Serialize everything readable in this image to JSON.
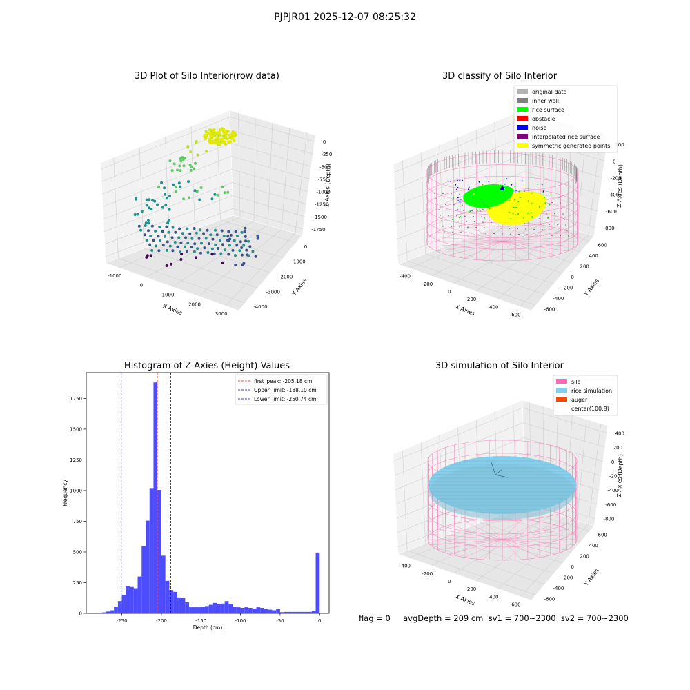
{
  "figure": {
    "title": "PJPJR01 2025-12-07 08:25:32",
    "status_text": "flag = 0     avgDepth = 209 cm  sv1 = 700~2300  sv2 = 700~2300"
  },
  "colors": {
    "histogram": "#4d4dff",
    "peak_line": "#ff0000",
    "limit_line": "#0000cc",
    "silo": "#ff69b4",
    "rice_simulation": "#87ceeb",
    "auger": "#ff4500"
  },
  "chart_data": [
    {
      "id": "raw",
      "type": "scatter",
      "projection": "3d",
      "title": "3D Plot of Silo Interior(row data)",
      "xlabel": "X Axies",
      "ylabel": "Y Axies",
      "zlabel": "Z Axies (Depth)",
      "x_ticks": [
        "-1000",
        "0",
        "1000",
        "2000",
        "3000"
      ],
      "y_ticks": [
        "-4000",
        "-3000",
        "-2000",
        "-1000",
        "0"
      ],
      "z_ticks": [
        "0",
        "-250",
        "-500",
        "-750",
        "-1000",
        "-1250",
        "-1500",
        "-1750"
      ],
      "colormap": "viridis"
    },
    {
      "id": "classify",
      "type": "scatter",
      "projection": "3d",
      "title": "3D classify of Silo Interior",
      "xlabel": "X Axies",
      "ylabel": "Y Axies",
      "zlabel": "Z Axies (Depth)",
      "x_ticks": [
        "-400",
        "-200",
        "0",
        "200",
        "400",
        "600"
      ],
      "y_ticks": [
        "-600",
        "-400",
        "-200",
        "0",
        "200",
        "400",
        "600"
      ],
      "z_ticks": [
        "200",
        "0",
        "-200",
        "-400",
        "-600",
        "-800"
      ],
      "legend_position": "top-right",
      "legend": [
        {
          "label": "original data",
          "color": "#b3b3b3"
        },
        {
          "label": "inner wall",
          "color": "#808080"
        },
        {
          "label": "rice surface",
          "color": "#00ff00"
        },
        {
          "label": "obstacle",
          "color": "#ff0000"
        },
        {
          "label": "noise",
          "color": "#0000ff"
        },
        {
          "label": "interpolated rice surface",
          "color": "#800080"
        },
        {
          "label": "symmetric generated points",
          "color": "#ffff00"
        }
      ]
    },
    {
      "id": "hist",
      "type": "bar",
      "title": "Histogram of Z-Axies (Height) Values",
      "xlabel": "Depth (cm)",
      "ylabel": "Frequency",
      "xlim": [
        -295,
        12
      ],
      "ylim": [
        0,
        1960
      ],
      "x_ticks": [
        -250,
        -200,
        -150,
        -100,
        -50,
        0
      ],
      "y_ticks": [
        0,
        250,
        500,
        750,
        1000,
        1250,
        1500,
        1750
      ],
      "bin_width": 5,
      "bin_starts": [
        -280,
        -275,
        -270,
        -265,
        -260,
        -255,
        -250,
        -245,
        -240,
        -235,
        -230,
        -225,
        -220,
        -215,
        -210,
        -205,
        -200,
        -195,
        -190,
        -185,
        -180,
        -175,
        -170,
        -165,
        -160,
        -155,
        -150,
        -145,
        -140,
        -135,
        -130,
        -125,
        -120,
        -115,
        -110,
        -105,
        -100,
        -95,
        -90,
        -85,
        -80,
        -75,
        -70,
        -65,
        -60,
        -55,
        -50,
        -45,
        -40,
        -35,
        -30,
        -25,
        -20,
        -15,
        -10,
        -5
      ],
      "values": [
        5,
        8,
        15,
        25,
        55,
        100,
        150,
        220,
        215,
        205,
        300,
        545,
        755,
        1020,
        1880,
        1005,
        470,
        265,
        190,
        175,
        130,
        125,
        90,
        50,
        50,
        50,
        55,
        60,
        70,
        85,
        75,
        80,
        100,
        75,
        55,
        50,
        45,
        50,
        45,
        40,
        50,
        45,
        35,
        30,
        25,
        35,
        10,
        12,
        12,
        12,
        12,
        12,
        12,
        12,
        20,
        495
      ],
      "legend_position": "top-right",
      "reference_lines": [
        {
          "label": "first_peak: -205.18 cm",
          "x": -205.18,
          "color": "#ff0000"
        },
        {
          "label": "Upper_limit: -188.10 cm",
          "x": -188.1,
          "color": "#0000cc"
        },
        {
          "label": "Lower_limit: -250.74 cm",
          "x": -250.74,
          "color": "#0000cc"
        }
      ]
    },
    {
      "id": "sim",
      "type": "surface",
      "projection": "3d",
      "title": "3D simulation of Silo Interior",
      "xlabel": "X Axies",
      "ylabel": "Y Axies",
      "zlabel": "Z Axies (Depth)",
      "x_ticks": [
        "-400",
        "-200",
        "0",
        "200",
        "400",
        "600"
      ],
      "y_ticks": [
        "-600",
        "-400",
        "-200",
        "0",
        "200",
        "400",
        "600"
      ],
      "z_ticks": [
        "400",
        "200",
        "0",
        "-200",
        "-400",
        "-600",
        "-800"
      ],
      "legend_position": "top-right",
      "legend": [
        {
          "label": "silo",
          "color": "#ff69b4"
        },
        {
          "label": "rice simulation",
          "color": "#87ceeb"
        },
        {
          "label": "auger",
          "color": "#ff4500"
        },
        {
          "label": "center(100,8)",
          "color": ""
        }
      ]
    }
  ]
}
